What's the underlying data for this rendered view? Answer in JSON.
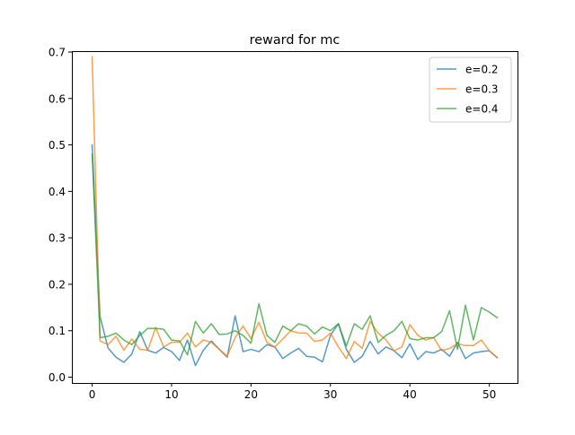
{
  "chart_data": {
    "type": "line",
    "title": "reward for mc",
    "xlabel": "",
    "ylabel": "",
    "xlim": [
      -2.55,
      53.55
    ],
    "ylim": [
      -0.0125,
      0.7
    ],
    "x_ticks": [
      0,
      10,
      20,
      30,
      40,
      50
    ],
    "y_ticks": [
      0.0,
      0.1,
      0.2,
      0.3,
      0.4,
      0.5,
      0.6,
      0.7
    ],
    "y_tick_labels": [
      "0.0",
      "0.1",
      "0.2",
      "0.3",
      "0.4",
      "0.5",
      "0.6",
      "0.7"
    ],
    "grid": false,
    "legend_position": "upper right",
    "x": [
      0,
      1,
      2,
      3,
      4,
      5,
      6,
      7,
      8,
      9,
      10,
      11,
      12,
      13,
      14,
      15,
      16,
      17,
      18,
      19,
      20,
      21,
      22,
      23,
      24,
      25,
      26,
      27,
      28,
      29,
      30,
      31,
      32,
      33,
      34,
      35,
      36,
      37,
      38,
      39,
      40,
      41,
      42,
      43,
      44,
      45,
      46,
      47,
      48,
      49,
      50,
      51
    ],
    "series": [
      {
        "name": "e=0.2",
        "color": "#1f77b4",
        "values": [
          0.5,
          0.13,
          0.063,
          0.043,
          0.032,
          0.05,
          0.098,
          0.058,
          0.052,
          0.064,
          0.055,
          0.036,
          0.08,
          0.025,
          0.058,
          0.078,
          0.06,
          0.043,
          0.132,
          0.055,
          0.06,
          0.055,
          0.07,
          0.065,
          0.04,
          0.052,
          0.062,
          0.045,
          0.043,
          0.033,
          0.09,
          0.115,
          0.06,
          0.032,
          0.045,
          0.077,
          0.05,
          0.065,
          0.057,
          0.042,
          0.072,
          0.038,
          0.055,
          0.052,
          0.06,
          0.045,
          0.075,
          0.04,
          0.052,
          0.055,
          0.057,
          0.042
        ]
      },
      {
        "name": "e=0.3",
        "color": "#ff7f0e",
        "values": [
          0.69,
          0.078,
          0.07,
          0.088,
          0.058,
          0.082,
          0.06,
          0.058,
          0.107,
          0.065,
          0.075,
          0.075,
          0.095,
          0.065,
          0.08,
          0.075,
          0.06,
          0.045,
          0.085,
          0.11,
          0.083,
          0.118,
          0.075,
          0.065,
          0.082,
          0.1,
          0.095,
          0.095,
          0.077,
          0.08,
          0.095,
          0.065,
          0.04,
          0.077,
          0.062,
          0.12,
          0.095,
          0.08,
          0.057,
          0.065,
          0.113,
          0.09,
          0.08,
          0.085,
          0.057,
          0.062,
          0.072,
          0.068,
          0.068,
          0.08,
          0.057,
          0.042
        ]
      },
      {
        "name": "e=0.4",
        "color": "#2ca02c",
        "values": [
          0.48,
          0.085,
          0.088,
          0.095,
          0.08,
          0.07,
          0.09,
          0.105,
          0.105,
          0.103,
          0.08,
          0.078,
          0.048,
          0.12,
          0.095,
          0.115,
          0.092,
          0.093,
          0.1,
          0.09,
          0.073,
          0.158,
          0.09,
          0.075,
          0.11,
          0.1,
          0.115,
          0.11,
          0.093,
          0.108,
          0.1,
          0.115,
          0.067,
          0.115,
          0.103,
          0.132,
          0.075,
          0.09,
          0.1,
          0.12,
          0.083,
          0.08,
          0.085,
          0.085,
          0.098,
          0.143,
          0.06,
          0.155,
          0.08,
          0.15,
          0.14,
          0.128
        ]
      }
    ]
  }
}
